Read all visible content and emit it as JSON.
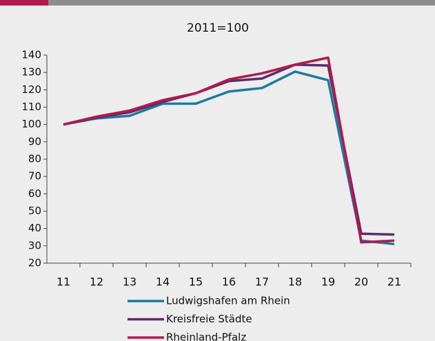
{
  "chart_data": {
    "type": "line",
    "title": "2011=100",
    "categories": [
      "11",
      "12",
      "13",
      "14",
      "15",
      "16",
      "17",
      "18",
      "19",
      "20",
      "21"
    ],
    "series": [
      {
        "name": "Ludwigshafen am Rhein",
        "color": "#1b7a9e",
        "values": [
          100,
          103.5,
          105,
          112,
          112,
          119,
          121,
          130.5,
          125.5,
          33,
          31
        ]
      },
      {
        "name": "Kreisfreie Städte",
        "color": "#5e2a6b",
        "values": [
          100,
          104,
          107,
          113,
          118,
          125,
          126.5,
          134.5,
          134,
          37,
          36.5
        ]
      },
      {
        "name": "Rheinland-Pfalz",
        "color": "#b2194e",
        "values": [
          100,
          104.5,
          108,
          114,
          118,
          126,
          129.5,
          134.5,
          138.5,
          32,
          33
        ]
      }
    ],
    "ylim": [
      20,
      140
    ],
    "yticks": [
      20,
      30,
      40,
      50,
      60,
      70,
      80,
      90,
      100,
      110,
      120,
      130,
      140
    ],
    "grid": false,
    "legend": "bottom"
  }
}
